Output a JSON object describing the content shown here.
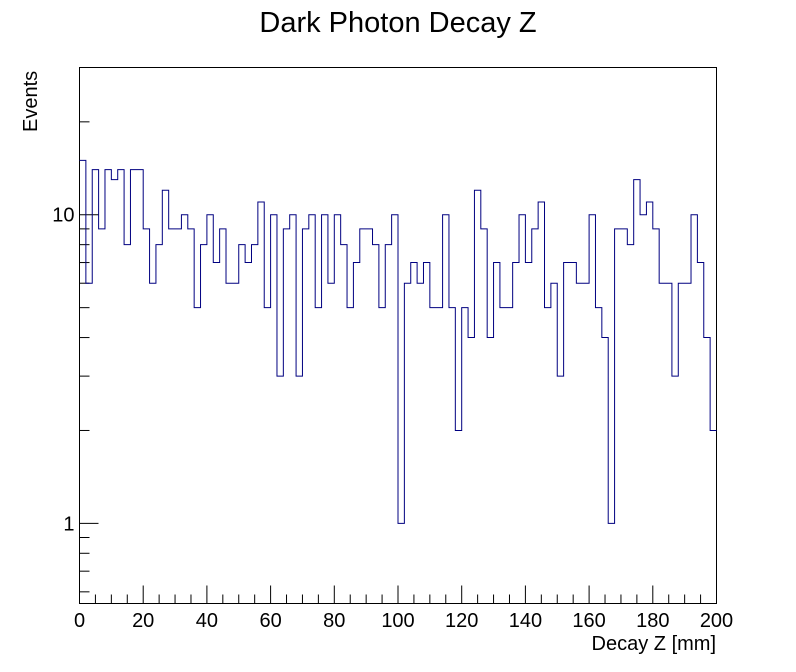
{
  "chart_data": {
    "type": "histogram",
    "title": "Dark Photon Decay Z",
    "xlabel": "Decay Z [mm]",
    "ylabel": "Events",
    "xlim": [
      0,
      200
    ],
    "ylim": [
      0.55,
      30
    ],
    "yscale": "log",
    "bin_width": 2,
    "line_color": "#000080",
    "x_ticks": [
      0,
      20,
      40,
      60,
      80,
      100,
      120,
      140,
      160,
      180,
      200
    ],
    "x_tick_labels": [
      "0",
      "20",
      "40",
      "60",
      "80",
      "100",
      "120",
      "140",
      "160",
      "180",
      "200"
    ],
    "y_ticks": [
      1,
      10
    ],
    "y_tick_labels": [
      "1",
      "10"
    ],
    "values": [
      15,
      6,
      14,
      9,
      14,
      13,
      14,
      8,
      14,
      14,
      9,
      6,
      8,
      12,
      9,
      9,
      10,
      9,
      5,
      8,
      10,
      7,
      9,
      6,
      6,
      8,
      7,
      8,
      11,
      5,
      10,
      3,
      9,
      10,
      3,
      9,
      10,
      5,
      10,
      6,
      10,
      8,
      5,
      7,
      9,
      9,
      8,
      5,
      8,
      10,
      1,
      6,
      7,
      6,
      7,
      5,
      5,
      10,
      5,
      2,
      5,
      4,
      12,
      9,
      4,
      7,
      5,
      5,
      7,
      10,
      7,
      9,
      11,
      5,
      6,
      3,
      7,
      7,
      6,
      6,
      10,
      5,
      4,
      1,
      9,
      9,
      8,
      13,
      10,
      11,
      9,
      6,
      6,
      3,
      6,
      6,
      10,
      7,
      4,
      2
    ]
  }
}
